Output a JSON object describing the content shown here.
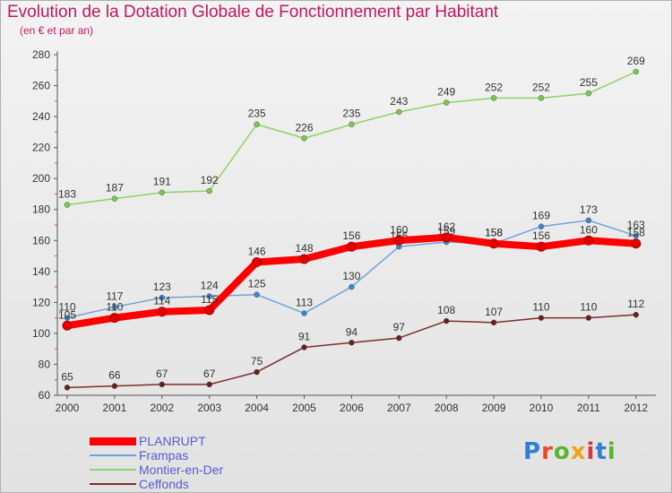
{
  "header": {
    "title": "Evolution de la Dotation Globale de Fonctionnement par Habitant",
    "subtitle": "(en € et par an)"
  },
  "logo": {
    "text": "Proxiti",
    "colors": [
      "#2f7fd3",
      "#e84b2a",
      "#58b531",
      "#f0a21a",
      "#d8334a",
      "#2f7fd3",
      "#58b531"
    ]
  },
  "chart_data": {
    "type": "line",
    "title": "Evolution de la Dotation Globale de Fonctionnement par Habitant",
    "subtitle": "(en € et par an)",
    "x": [
      "2000",
      "2001",
      "2002",
      "2003",
      "2004",
      "2005",
      "2006",
      "2007",
      "2008",
      "2009",
      "2010",
      "2011",
      "2012"
    ],
    "ylim": [
      60,
      280
    ],
    "yticks": [
      60,
      80,
      100,
      120,
      140,
      160,
      180,
      200,
      220,
      240,
      260,
      280
    ],
    "grid": false,
    "legend_position": "bottom-left",
    "series": [
      {
        "name": "Montier-en-Der",
        "color": "#8fd16a",
        "marker_color": "#7dc84a",
        "values": [
          183,
          187,
          191,
          192,
          235,
          226,
          235,
          243,
          249,
          252,
          252,
          255,
          269
        ]
      },
      {
        "name": "Ceffonds",
        "color": "#7a2e2e",
        "marker_color": "#6a1e1e",
        "values": [
          65,
          66,
          67,
          67,
          75,
          91,
          94,
          97,
          108,
          107,
          110,
          110,
          112
        ]
      },
      {
        "name": "Frampas",
        "color": "#6fa3d6",
        "marker_color": "#3a87d0",
        "values": [
          110,
          117,
          123,
          124,
          125,
          113,
          130,
          156,
          159,
          158,
          169,
          173,
          163
        ]
      },
      {
        "name": "PLANRUPT",
        "color": "#ff0000",
        "marker_color": "#e00000",
        "values": [
          105,
          110,
          114,
          115,
          146,
          148,
          156,
          160,
          162,
          158,
          156,
          160,
          158
        ]
      }
    ],
    "legend_order": [
      "PLANRUPT",
      "Frampas",
      "Montier-en-Der",
      "Ceffonds"
    ]
  }
}
